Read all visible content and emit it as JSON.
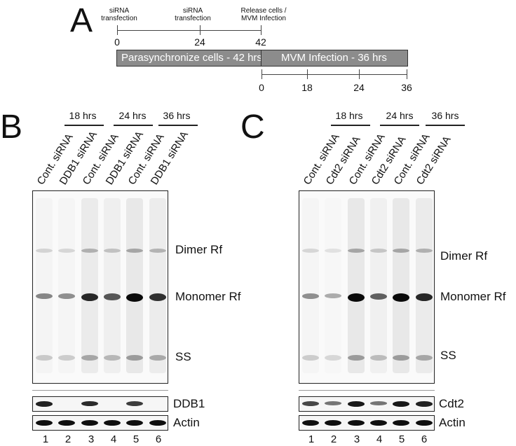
{
  "panelA": {
    "letter": "A",
    "events": [
      {
        "label": "siRNA\ntransfection",
        "tick": "0"
      },
      {
        "label": "siRNA\ntransfection",
        "tick": "24"
      },
      {
        "label": "Release cells /\nMVM Infection",
        "tick": "42"
      }
    ],
    "bar_left": "Parasynchronize cells - 42 hrs",
    "bar_right": "MVM Infection - 36 hrs",
    "bottom_ticks": [
      "0",
      "18",
      "24",
      "36"
    ]
  },
  "panelB": {
    "letter": "B",
    "time_groups": [
      "18 hrs",
      "24 hrs",
      "36 hrs"
    ],
    "lanes": [
      "Cont. siRNA",
      "DDB1 siRNA",
      "Cont. siRNA",
      "DDB1 siRNA",
      "Cont. siRNA",
      "DDB1 siRNA"
    ],
    "band_labels": {
      "dimer": "Dimer Rf",
      "monomer": "Monomer Rf",
      "ss": "SS"
    },
    "blot_labels": {
      "target": "DDB1",
      "loading": "Actin"
    },
    "lane_numbers": [
      "1",
      "2",
      "3",
      "4",
      "5",
      "6"
    ],
    "monomer_intensity": [
      0.35,
      0.3,
      0.85,
      0.6,
      1.0,
      0.8
    ],
    "target_intensity": [
      0.9,
      0.0,
      0.85,
      0.0,
      0.75,
      0.0
    ]
  },
  "panelC": {
    "letter": "C",
    "time_groups": [
      "18 hrs",
      "24 hrs",
      "36 hrs"
    ],
    "lanes": [
      "Cont. siRNA",
      "Cdt2 siRNA",
      "Cont. siRNA",
      "Cdt2 siRNA",
      "Cont. siRNA",
      "Cdt2 siRNA"
    ],
    "band_labels": {
      "dimer": "Dimer Rf",
      "monomer": "Monomer Rf",
      "ss": "SS"
    },
    "blot_labels": {
      "target": "Cdt2",
      "loading": "Actin"
    },
    "lane_numbers": [
      "1",
      "2",
      "3",
      "4",
      "5",
      "6"
    ],
    "monomer_intensity": [
      0.3,
      0.15,
      1.0,
      0.55,
      1.0,
      0.85
    ],
    "target_intensity": [
      0.7,
      0.45,
      0.95,
      0.45,
      0.95,
      0.9
    ]
  }
}
